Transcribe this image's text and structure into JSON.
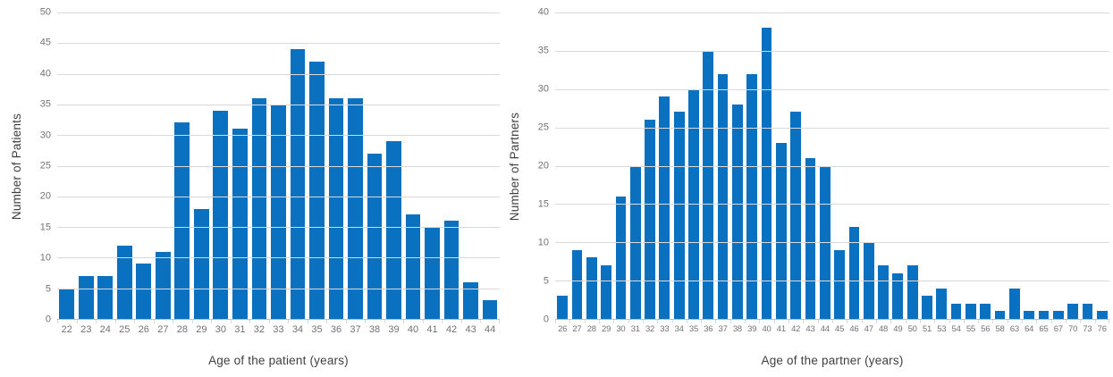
{
  "figure": {
    "background": "#ffffff",
    "bar_color": "#0a70c0",
    "gridline_color": "#d9d9d9",
    "axis_line_color": "#bfbfbf",
    "tick_label_color": "#737373",
    "axis_title_color": "#404040"
  },
  "chart_data": [
    {
      "type": "bar",
      "xlabel": "Age of the patient (years)",
      "ylabel": "Number of Patients",
      "categories": [
        "22",
        "23",
        "24",
        "25",
        "26",
        "27",
        "28",
        "29",
        "30",
        "31",
        "32",
        "33",
        "34",
        "35",
        "36",
        "37",
        "38",
        "39",
        "40",
        "41",
        "42",
        "43",
        "44"
      ],
      "values": [
        5,
        7,
        7,
        12,
        9,
        11,
        32,
        18,
        34,
        31,
        36,
        35,
        44,
        42,
        36,
        36,
        27,
        29,
        17,
        15,
        16,
        6,
        3
      ],
      "ylim": [
        0,
        50
      ],
      "ytick_step": 5,
      "grid": "horizontal",
      "legend": "none"
    },
    {
      "type": "bar",
      "xlabel": "Age of the partner (years)",
      "ylabel": "Number of Partners",
      "categories": [
        "26",
        "27",
        "28",
        "29",
        "30",
        "31",
        "32",
        "33",
        "34",
        "35",
        "36",
        "37",
        "38",
        "39",
        "40",
        "41",
        "42",
        "43",
        "44",
        "45",
        "46",
        "47",
        "48",
        "49",
        "50",
        "51",
        "53",
        "54",
        "55",
        "56",
        "58",
        "63",
        "64",
        "65",
        "67",
        "70",
        "73",
        "76"
      ],
      "values": [
        3,
        9,
        8,
        7,
        16,
        20,
        26,
        29,
        27,
        30,
        35,
        32,
        28,
        32,
        38,
        23,
        27,
        21,
        20,
        9,
        12,
        10,
        7,
        6,
        7,
        3,
        4,
        2,
        2,
        2,
        1,
        4,
        1,
        1,
        1,
        2,
        2,
        1
      ],
      "ylim": [
        0,
        40
      ],
      "ytick_step": 5,
      "grid": "horizontal",
      "legend": "none"
    }
  ]
}
